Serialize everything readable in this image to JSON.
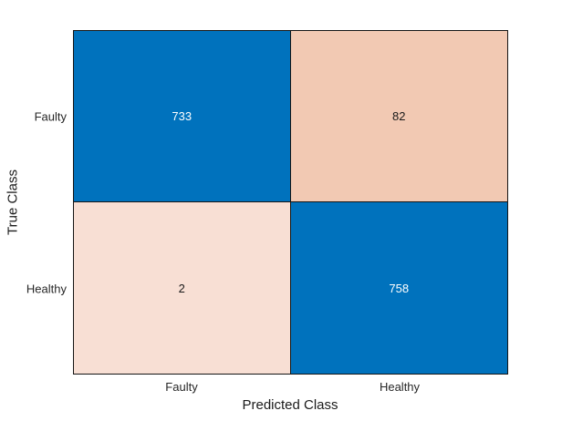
{
  "chart_data": {
    "type": "heatmap",
    "chart_kind": "confusion-matrix",
    "title": "",
    "xlabel": "Predicted Class",
    "ylabel": "True Class",
    "x_categories": [
      "Faulty",
      "Healthy"
    ],
    "y_categories": [
      "Faulty",
      "Healthy"
    ],
    "matrix": [
      [
        733,
        82
      ],
      [
        2,
        758
      ]
    ],
    "cells": [
      {
        "true_class": "Faulty",
        "predicted_class": "Faulty",
        "value": "733",
        "bg": "#0072BD",
        "fg": "#FFFFFF"
      },
      {
        "true_class": "Faulty",
        "predicted_class": "Healthy",
        "value": "82",
        "bg": "#F2C9B3",
        "fg": "#1A1A1A"
      },
      {
        "true_class": "Healthy",
        "predicted_class": "Faulty",
        "value": "2",
        "bg": "#F8DFD4",
        "fg": "#1A1A1A"
      },
      {
        "true_class": "Healthy",
        "predicted_class": "Healthy",
        "value": "758",
        "bg": "#0072BD",
        "fg": "#FFFFFF"
      }
    ],
    "colors": {
      "diagonal": "#0072BD",
      "off_diagonal_high": "#F2C9B3",
      "off_diagonal_low": "#F8DFD4",
      "grid_border": "#151515",
      "background": "#FFFFFF"
    },
    "layout": {
      "grid": "off",
      "legend": "none",
      "colorbar": "none"
    }
  }
}
